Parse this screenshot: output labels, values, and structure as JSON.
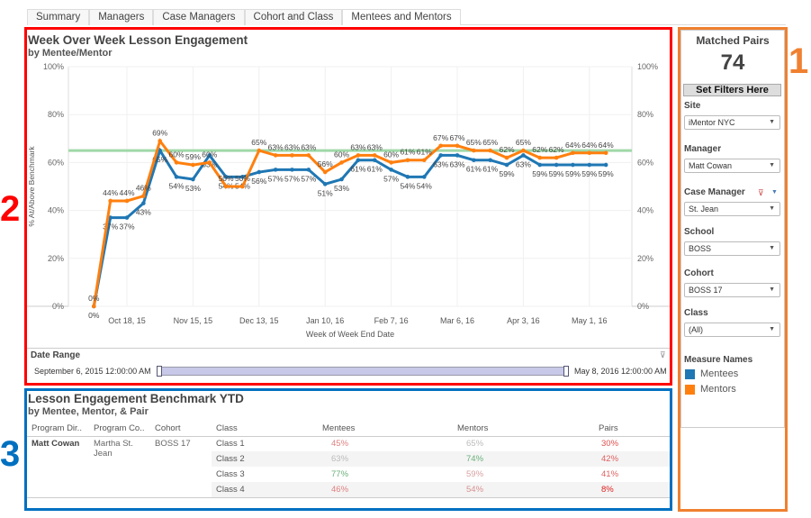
{
  "tabs": [
    "Summary",
    "Managers",
    "Case Managers",
    "Cohort and Class",
    "Mentees and Mentors"
  ],
  "active_tab": "Mentees and Mentors",
  "annotations": {
    "sidebar": "1",
    "chart": "2",
    "table": "3"
  },
  "colors": {
    "mentees": "#1f77b4",
    "mentors": "#ff7f0e",
    "benchmark": "#9fd8a8",
    "frame_sidebar": "#f08030",
    "frame_chart": "#ff0000",
    "frame_table": "#0070c0"
  },
  "chart": {
    "title": "Week Over Week Lesson Engagement",
    "subtitle": "by Mentee/Mentor"
  },
  "chart_data": {
    "type": "line",
    "title": "Week Over Week Lesson Engagement",
    "subtitle": "by Mentee/Mentor",
    "xlabel": "Week of Week End Date",
    "ylabel": "% At/Above Benchmark",
    "ylim": [
      0,
      100
    ],
    "yticks": [
      "0%",
      "20%",
      "40%",
      "60%",
      "80%",
      "100%"
    ],
    "yticks_values": [
      0,
      20,
      40,
      60,
      80,
      100
    ],
    "xticks": [
      "Oct 18, 15",
      "Nov 15, 15",
      "Dec 13, 15",
      "Jan 10, 16",
      "Feb 7, 16",
      "Mar 6, 16",
      "Apr 3, 16",
      "May 1, 16"
    ],
    "x": [
      "2015-10-04",
      "2015-10-11",
      "2015-10-18",
      "2015-10-25",
      "2015-11-01",
      "2015-11-08",
      "2015-11-15",
      "2015-11-22",
      "2015-11-29",
      "2015-12-06",
      "2015-12-13",
      "2015-12-20",
      "2015-12-27",
      "2016-01-03",
      "2016-01-10",
      "2016-01-17",
      "2016-01-24",
      "2016-01-31",
      "2016-02-07",
      "2016-02-14",
      "2016-02-21",
      "2016-02-28",
      "2016-03-06",
      "2016-03-13",
      "2016-03-20",
      "2016-03-27",
      "2016-04-03",
      "2016-04-10",
      "2016-04-17",
      "2016-04-24",
      "2016-05-01",
      "2016-05-08"
    ],
    "series": [
      {
        "name": "Mentees",
        "values": [
          0,
          37,
          37,
          43,
          65,
          54,
          53,
          63,
          54,
          54,
          56,
          57,
          57,
          57,
          51,
          53,
          61,
          61,
          57,
          54,
          54,
          63,
          63,
          61,
          61,
          59,
          63,
          59,
          59,
          59,
          59,
          59
        ]
      },
      {
        "name": "Mentors",
        "values": [
          0,
          44,
          44,
          46,
          69,
          60,
          59,
          60,
          50,
          50,
          65,
          63,
          63,
          63,
          56,
          60,
          63,
          63,
          60,
          61,
          61,
          67,
          67,
          65,
          65,
          62,
          65,
          62,
          62,
          64,
          64,
          64
        ]
      }
    ],
    "reference_line": 65,
    "grid": true,
    "dual_axis": true
  },
  "date_range": {
    "label": "Date Range",
    "start": "September 6, 2015 12:00:00 AM",
    "end": "May 8, 2016 12:00:00 AM"
  },
  "table": {
    "title": "Lesson Engagement Benchmark YTD",
    "subtitle": "by Mentee, Mentor, & Pair",
    "headers": [
      "Program Dir..",
      "Program Co..",
      "Cohort",
      "Class",
      "Mentees",
      "Mentors",
      "Pairs"
    ],
    "program_director": "Matt Cowan",
    "program_coordinator": "Martha St. Jean",
    "cohort": "BOSS 17",
    "rows": [
      {
        "class": "Class 1",
        "mentees": "45%",
        "mentors": "65%",
        "pairs": "30%",
        "c": [
          "#e08080",
          "#bbb",
          "#e05050"
        ]
      },
      {
        "class": "Class 2",
        "mentees": "63%",
        "mentors": "74%",
        "pairs": "42%",
        "c": [
          "#bbb",
          "#6bb07a",
          "#e06060"
        ]
      },
      {
        "class": "Class 3",
        "mentees": "77%",
        "mentors": "59%",
        "pairs": "41%",
        "c": [
          "#6bb07a",
          "#d8a0a0",
          "#e06060"
        ]
      },
      {
        "class": "Class 4",
        "mentees": "46%",
        "mentors": "54%",
        "pairs": "8%",
        "c": [
          "#e08080",
          "#d89090",
          "#e02020"
        ]
      }
    ]
  },
  "sidebar": {
    "title": "Matched Pairs",
    "count": "74",
    "set_filters": "Set Filters Here",
    "filters": [
      {
        "label": "Site",
        "value": "iMentor NYC"
      },
      {
        "label": "Manager",
        "value": "Matt Cowan"
      },
      {
        "label": "Case Manager",
        "value": "St. Jean"
      },
      {
        "label": "School",
        "value": "BOSS"
      },
      {
        "label": "Cohort",
        "value": "BOSS 17"
      },
      {
        "label": "Class",
        "value": "(All)"
      }
    ],
    "legend_title": "Measure Names",
    "legend": [
      "Mentees",
      "Mentors"
    ]
  }
}
